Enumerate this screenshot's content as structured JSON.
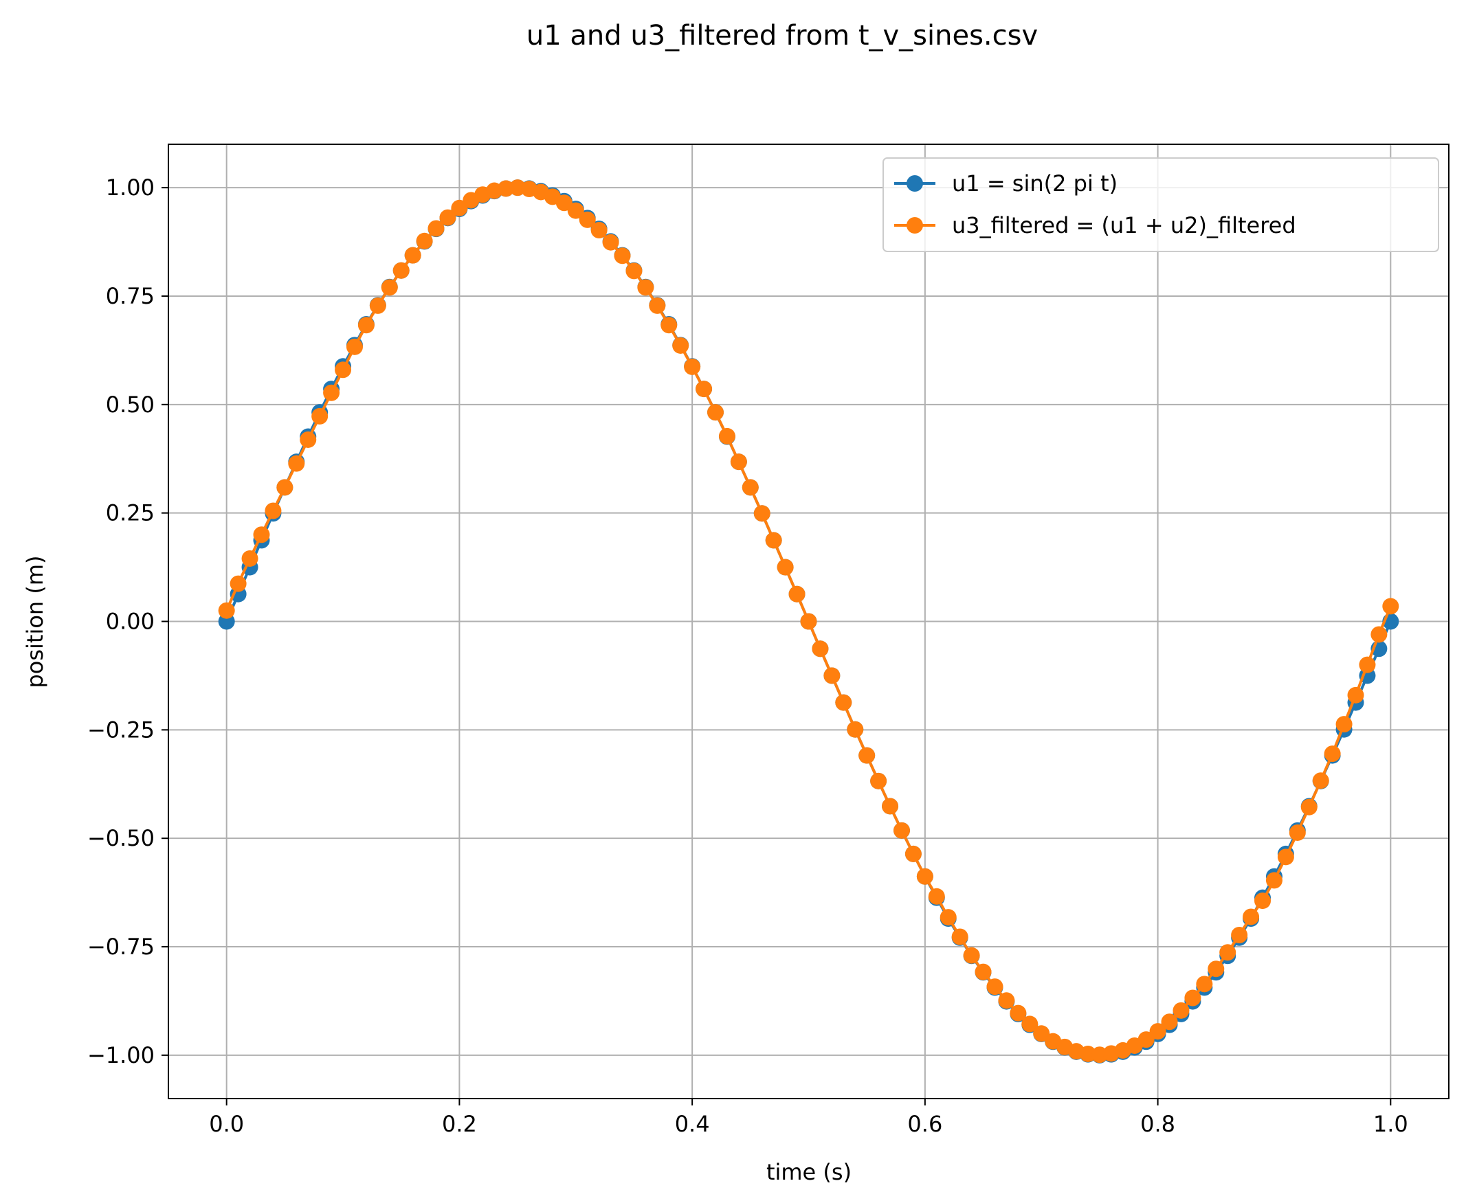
{
  "chart_data": {
    "type": "line",
    "title": "u1 and u3_filtered from t_v_sines.csv",
    "xlabel": "time (s)",
    "ylabel": "position (m)",
    "xlim": [
      -0.05,
      1.05
    ],
    "ylim": [
      -1.1,
      1.1
    ],
    "xticks": [
      0.0,
      0.2,
      0.4,
      0.6,
      0.8,
      1.0
    ],
    "xtick_labels": [
      "0.0",
      "0.2",
      "0.4",
      "0.6",
      "0.8",
      "1.0"
    ],
    "yticks": [
      -1.0,
      -0.75,
      -0.5,
      -0.25,
      0.0,
      0.25,
      0.5,
      0.75,
      1.0
    ],
    "ytick_labels": [
      "−1.00",
      "−0.75",
      "−0.50",
      "−0.25",
      "0.00",
      "0.25",
      "0.50",
      "0.75",
      "1.00"
    ],
    "grid": true,
    "legend_position": "top-right",
    "x": [
      0.0,
      0.01,
      0.02,
      0.03,
      0.04,
      0.05,
      0.06,
      0.07,
      0.08,
      0.09,
      0.1,
      0.11,
      0.12,
      0.13,
      0.14,
      0.15,
      0.16,
      0.17,
      0.18,
      0.19,
      0.2,
      0.21,
      0.22,
      0.23,
      0.24,
      0.25,
      0.26,
      0.27,
      0.28,
      0.29,
      0.3,
      0.31,
      0.32,
      0.33,
      0.34,
      0.35,
      0.36,
      0.37,
      0.38,
      0.39,
      0.4,
      0.41,
      0.42,
      0.43,
      0.44,
      0.45,
      0.46,
      0.47,
      0.48,
      0.49,
      0.5,
      0.51,
      0.52,
      0.53,
      0.54,
      0.55,
      0.56,
      0.57,
      0.58,
      0.59,
      0.6,
      0.61,
      0.62,
      0.63,
      0.64,
      0.65,
      0.66,
      0.67,
      0.68,
      0.69,
      0.7,
      0.71,
      0.72,
      0.73,
      0.74,
      0.75,
      0.76,
      0.77,
      0.78,
      0.79,
      0.8,
      0.81,
      0.82,
      0.83,
      0.84,
      0.85,
      0.86,
      0.87,
      0.88,
      0.89,
      0.9,
      0.91,
      0.92,
      0.93,
      0.94,
      0.95,
      0.96,
      0.97,
      0.98,
      0.99,
      1.0
    ],
    "series": [
      {
        "name": "u1 = sin(2 pi t)",
        "color": "#1f77b4",
        "values": [
          0.0,
          0.063,
          0.125,
          0.187,
          0.249,
          0.309,
          0.368,
          0.426,
          0.482,
          0.536,
          0.588,
          0.637,
          0.685,
          0.729,
          0.771,
          0.809,
          0.844,
          0.876,
          0.905,
          0.93,
          0.951,
          0.969,
          0.982,
          0.992,
          0.998,
          1.0,
          0.998,
          0.992,
          0.982,
          0.969,
          0.951,
          0.93,
          0.905,
          0.876,
          0.844,
          0.809,
          0.771,
          0.729,
          0.685,
          0.637,
          0.588,
          0.536,
          0.482,
          0.426,
          0.368,
          0.309,
          0.249,
          0.187,
          0.125,
          0.063,
          0.0,
          -0.063,
          -0.125,
          -0.187,
          -0.249,
          -0.309,
          -0.368,
          -0.426,
          -0.482,
          -0.536,
          -0.588,
          -0.637,
          -0.685,
          -0.729,
          -0.771,
          -0.809,
          -0.844,
          -0.876,
          -0.905,
          -0.93,
          -0.951,
          -0.969,
          -0.982,
          -0.992,
          -0.998,
          -1.0,
          -0.998,
          -0.992,
          -0.982,
          -0.969,
          -0.951,
          -0.93,
          -0.905,
          -0.876,
          -0.844,
          -0.809,
          -0.771,
          -0.729,
          -0.685,
          -0.637,
          -0.588,
          -0.536,
          -0.482,
          -0.426,
          -0.368,
          -0.309,
          -0.249,
          -0.187,
          -0.125,
          -0.063,
          0.0
        ]
      },
      {
        "name": "u3_filtered = (u1 + u2)_filtered",
        "color": "#ff7f0e",
        "values": [
          0.025,
          0.087,
          0.145,
          0.2,
          0.255,
          0.309,
          0.364,
          0.419,
          0.473,
          0.527,
          0.58,
          0.633,
          0.683,
          0.728,
          0.77,
          0.809,
          0.844,
          0.877,
          0.906,
          0.931,
          0.953,
          0.971,
          0.984,
          0.993,
          0.998,
          1.0,
          0.997,
          0.99,
          0.979,
          0.965,
          0.947,
          0.926,
          0.902,
          0.874,
          0.843,
          0.808,
          0.77,
          0.728,
          0.683,
          0.636,
          0.587,
          0.536,
          0.482,
          0.427,
          0.368,
          0.309,
          0.249,
          0.187,
          0.125,
          0.063,
          0.0,
          -0.063,
          -0.125,
          -0.187,
          -0.249,
          -0.309,
          -0.368,
          -0.426,
          -0.482,
          -0.536,
          -0.588,
          -0.634,
          -0.682,
          -0.727,
          -0.77,
          -0.808,
          -0.842,
          -0.874,
          -0.903,
          -0.928,
          -0.95,
          -0.968,
          -0.981,
          -0.991,
          -0.997,
          -0.999,
          -0.996,
          -0.989,
          -0.978,
          -0.964,
          -0.945,
          -0.923,
          -0.897,
          -0.868,
          -0.836,
          -0.801,
          -0.763,
          -0.723,
          -0.681,
          -0.644,
          -0.597,
          -0.543,
          -0.487,
          -0.428,
          -0.367,
          -0.305,
          -0.237,
          -0.17,
          -0.1,
          -0.03,
          0.035
        ]
      }
    ]
  }
}
